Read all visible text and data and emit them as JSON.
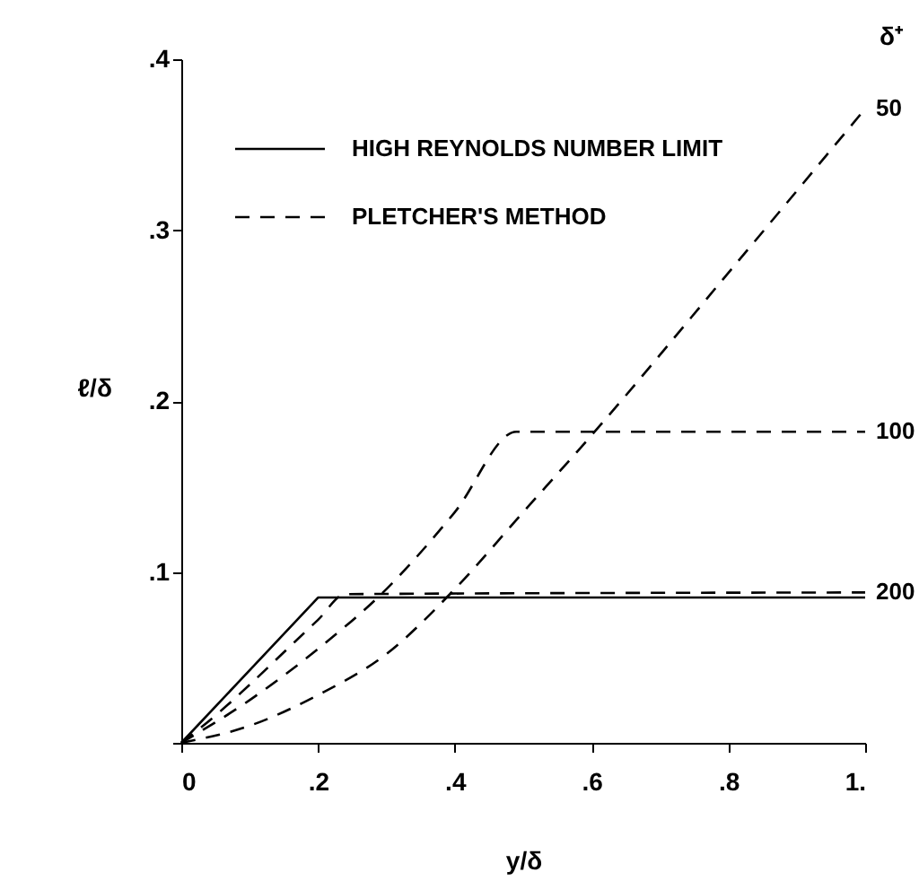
{
  "chart_data": {
    "type": "line",
    "xlabel": "y/δ",
    "ylabel": "ℓ/δ",
    "legend_title": "δ⁺",
    "xlim": [
      0,
      1
    ],
    "ylim": [
      0,
      0.4
    ],
    "xticks": [
      {
        "value": 0,
        "label": "0"
      },
      {
        "value": 0.2,
        "label": ".2"
      },
      {
        "value": 0.4,
        "label": ".4"
      },
      {
        "value": 0.6,
        "label": ".6"
      },
      {
        "value": 0.8,
        "label": ".8"
      },
      {
        "value": 1,
        "label": "1."
      }
    ],
    "yticks": [
      {
        "value": 0,
        "label": null
      },
      {
        "value": 0.1,
        "label": ".1"
      },
      {
        "value": 0.2,
        "label": ".2"
      },
      {
        "value": 0.3,
        "label": ".3"
      },
      {
        "value": 0.4,
        "label": ".4"
      }
    ],
    "legend": "top left",
    "marker": "none",
    "annotations": [
      "PLETCHER'S METHOD"
    ],
    "series": [
      {
        "name": "HIGH REYNOLDS NUMBER LIMIT",
        "color": "#000000",
        "line_style": "solid",
        "x": [
          0,
          0.2,
          1
        ],
        "values": [
          0,
          0.085,
          0.085
        ]
      },
      {
        "name": "200",
        "color": "#000000",
        "line_style": "dashed",
        "x": [
          0,
          0.05,
          0.1,
          0.15,
          0.2,
          0.24,
          1
        ],
        "values": [
          0,
          0.016,
          0.034,
          0.053,
          0.072,
          0.087,
          0.088
        ]
      },
      {
        "name": "100",
        "color": "#000000",
        "line_style": "dashed",
        "x": [
          0,
          0.1,
          0.2,
          0.3,
          0.4,
          0.49,
          1
        ],
        "values": [
          0,
          0.025,
          0.055,
          0.09,
          0.135,
          0.182,
          0.182
        ]
      },
      {
        "name": "50",
        "color": "#000000",
        "line_style": "dashed",
        "x": [
          0,
          0.1,
          0.2,
          0.3,
          0.4,
          0.5,
          0.6,
          0.8,
          1
        ],
        "values": [
          0,
          0.01,
          0.028,
          0.052,
          0.09,
          0.135,
          0.18,
          0.275,
          0.371
        ]
      }
    ]
  }
}
